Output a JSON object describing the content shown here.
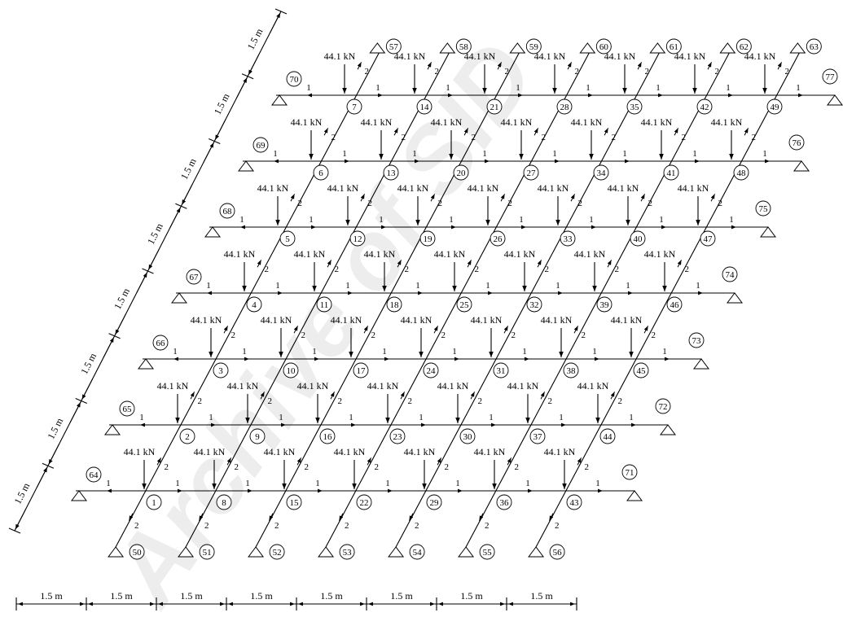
{
  "diagram": {
    "grid": {
      "columns": 7,
      "rows": 7
    },
    "load_label": "44.1 kN",
    "direction_x_label": "1",
    "direction_y_label": "2",
    "spacing_label": "1.5 m",
    "bottom_dimension_count": 8,
    "left_dimension_count": 8,
    "watermark": "Archive of SID",
    "bottom_support_labels": [
      "50",
      "51",
      "52",
      "53",
      "54",
      "55",
      "56"
    ],
    "top_support_labels": [
      "57",
      "58",
      "59",
      "60",
      "61",
      "62",
      "63"
    ],
    "left_support_labels": [
      "64",
      "65",
      "66",
      "67",
      "68",
      "69",
      "70"
    ],
    "right_support_labels": [
      "71",
      "72",
      "73",
      "74",
      "75",
      "76",
      "77"
    ]
  }
}
